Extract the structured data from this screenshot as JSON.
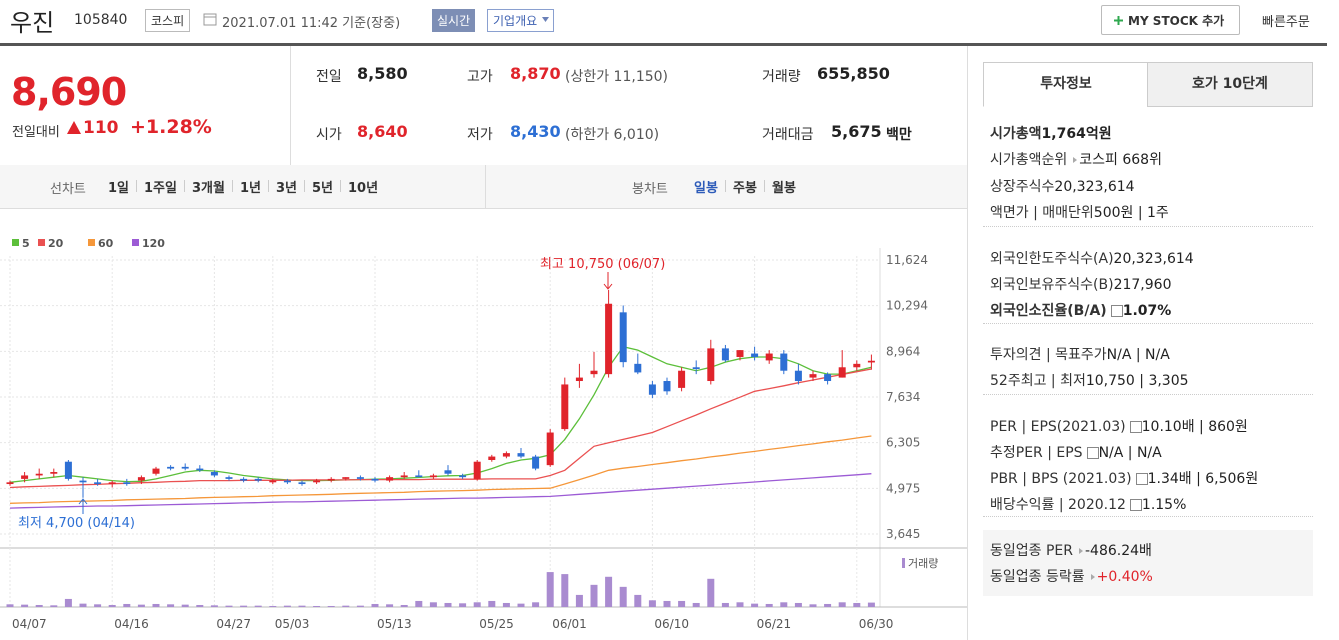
{
  "header": {
    "name": "우진",
    "code": "105840",
    "market": "코스피",
    "timestamp": "2021.07.01 11:42 기준(장중)",
    "realtime": "실시간",
    "overview": "기업개요",
    "mystock": "MY STOCK 추가",
    "quick_order": "빠른주문"
  },
  "quote": {
    "price": "8,690",
    "change_label": "전일대비",
    "change": "110",
    "change_pct": "+1.28%",
    "items": [
      {
        "label": "전일",
        "value": "8,580"
      },
      {
        "label": "고가",
        "value": "8,870",
        "tone": "up",
        "extra": "(상한가 11,150)"
      },
      {
        "label": "거래량",
        "value": "655,850"
      },
      {
        "label": "시가",
        "value": "8,640",
        "tone": "up"
      },
      {
        "label": "저가",
        "value": "8,430",
        "tone": "down",
        "extra": "(하한가 6,010)"
      },
      {
        "label": "거래대금",
        "value": "5,675",
        "extra": "백만"
      }
    ]
  },
  "toolbar": {
    "line_label": "선차트",
    "line_periods": [
      "1일",
      "1주일",
      "3개월",
      "1년",
      "3년",
      "5년",
      "10년"
    ],
    "candle_label": "봉차트",
    "candle_periods": [
      "일봉",
      "주봉",
      "월봉"
    ],
    "active_candle": 0
  },
  "chart": {
    "type": "candlestick",
    "categories": [
      "04/07",
      null,
      null,
      null,
      null,
      null,
      null,
      "04/16",
      null,
      null,
      null,
      null,
      null,
      null,
      "04/27",
      null,
      null,
      null,
      "05/03",
      null,
      null,
      null,
      null,
      null,
      null,
      "05/13",
      null,
      null,
      null,
      null,
      null,
      null,
      "05/25",
      null,
      null,
      null,
      null,
      "06/01",
      null,
      null,
      null,
      null,
      null,
      null,
      "06/10",
      null,
      null,
      null,
      null,
      null,
      null,
      "06/21",
      null,
      null,
      null,
      null,
      null,
      null,
      "06/30",
      null
    ],
    "open": [
      5100,
      5250,
      5350,
      5400,
      5750,
      5200,
      5150,
      5100,
      5150,
      5200,
      5400,
      5600,
      5600,
      5550,
      5450,
      5300,
      5250,
      5250,
      5150,
      5200,
      5150,
      5150,
      5200,
      5250,
      5300,
      5250,
      5200,
      5300,
      5350,
      5300,
      5500,
      5350,
      5250,
      5800,
      5900,
      6000,
      5900,
      5650,
      6700,
      8100,
      8300,
      8300,
      10100,
      8600,
      8000,
      8100,
      7900,
      8500,
      8100,
      9050,
      8800,
      8900,
      8700,
      8900,
      8400,
      8200,
      8300,
      8200,
      8500,
      8640
    ],
    "high": [
      5200,
      5450,
      5550,
      5550,
      5800,
      5300,
      5250,
      5200,
      5250,
      5350,
      5600,
      5650,
      5700,
      5650,
      5500,
      5350,
      5300,
      5300,
      5250,
      5250,
      5200,
      5250,
      5300,
      5300,
      5350,
      5300,
      5350,
      5450,
      5500,
      5400,
      5650,
      5400,
      5800,
      5950,
      6050,
      6150,
      5950,
      6700,
      8200,
      8600,
      8950,
      10750,
      10300,
      8900,
      8100,
      8200,
      8500,
      8700,
      9300,
      9150,
      9000,
      9100,
      9000,
      9000,
      8600,
      8400,
      8350,
      9000,
      8700,
      8870
    ],
    "low": [
      5050,
      5150,
      5250,
      5300,
      5200,
      4700,
      5050,
      5000,
      5050,
      5100,
      5350,
      5500,
      5500,
      5450,
      5300,
      5200,
      5150,
      5150,
      5100,
      5100,
      5050,
      5100,
      5150,
      5200,
      5200,
      5150,
      5150,
      5250,
      5300,
      5250,
      5350,
      5250,
      5200,
      5750,
      5850,
      5850,
      5500,
      5600,
      6650,
      7900,
      8200,
      8200,
      8500,
      8300,
      7600,
      7700,
      7800,
      8300,
      8000,
      8650,
      8700,
      8700,
      8600,
      8300,
      8000,
      8100,
      8000,
      8200,
      8400,
      8430
    ],
    "close": [
      5150,
      5350,
      5400,
      5450,
      5250,
      5150,
      5100,
      5150,
      5100,
      5300,
      5550,
      5550,
      5550,
      5500,
      5350,
      5250,
      5200,
      5200,
      5200,
      5150,
      5100,
      5200,
      5250,
      5300,
      5250,
      5200,
      5300,
      5350,
      5300,
      5350,
      5400,
      5300,
      5750,
      5900,
      6000,
      5900,
      5550,
      6600,
      8000,
      8200,
      8400,
      10350,
      8650,
      8350,
      7700,
      7800,
      8400,
      8450,
      9050,
      8700,
      9000,
      8800,
      8900,
      8400,
      8100,
      8300,
      8100,
      8500,
      8600,
      8690
    ],
    "volume": [
      400000,
      350000,
      300000,
      250000,
      1200000,
      500000,
      400000,
      300000,
      450000,
      350000,
      450000,
      400000,
      350000,
      300000,
      250000,
      200000,
      200000,
      200000,
      150000,
      200000,
      200000,
      150000,
      150000,
      200000,
      200000,
      450000,
      400000,
      300000,
      900000,
      700000,
      600000,
      550000,
      700000,
      900000,
      600000,
      500000,
      700000,
      5200000,
      4900000,
      1800000,
      3300000,
      4500000,
      3000000,
      1800000,
      1000000,
      900000,
      900000,
      600000,
      4200000,
      600000,
      700000,
      500000,
      450000,
      700000,
      600000,
      400000,
      450000,
      700000,
      600000,
      655850
    ],
    "volume_label": "거래량",
    "volume_lim": [
      0,
      7000000
    ],
    "ma": [
      {
        "name": "5",
        "color": "#5cbf3a",
        "values": [
          5150,
          5200,
          5250,
          5300,
          5350,
          5300,
          5250,
          5200,
          5170,
          5180,
          5250,
          5350,
          5450,
          5500,
          5480,
          5420,
          5350,
          5300,
          5250,
          5220,
          5200,
          5200,
          5210,
          5220,
          5230,
          5240,
          5250,
          5270,
          5290,
          5320,
          5340,
          5350,
          5420,
          5550,
          5700,
          5800,
          5850,
          5950,
          6400,
          7000,
          7700,
          8500,
          9100,
          9000,
          8800,
          8600,
          8500,
          8400,
          8500,
          8650,
          8750,
          8800,
          8800,
          8750,
          8600,
          8400,
          8300,
          8300,
          8400,
          8500
        ]
      },
      {
        "name": "20",
        "color": "#ea5151",
        "values": [
          5000,
          5020,
          5030,
          5050,
          5060,
          5080,
          5090,
          5110,
          5120,
          5140,
          5150,
          5170,
          5180,
          5200,
          5200,
          5200,
          5210,
          5210,
          5210,
          5210,
          5220,
          5220,
          5220,
          5220,
          5230,
          5230,
          5230,
          5230,
          5230,
          5240,
          5240,
          5240,
          5240,
          5250,
          5250,
          5250,
          5250,
          5350,
          5500,
          5850,
          6200,
          6300,
          6400,
          6500,
          6600,
          6770,
          6940,
          7110,
          7290,
          7460,
          7630,
          7800,
          7880,
          7960,
          8050,
          8130,
          8210,
          8290,
          8370,
          8450
        ]
      },
      {
        "name": "60",
        "color": "#f5973a",
        "values": [
          4540,
          4550,
          4560,
          4580,
          4590,
          4600,
          4610,
          4620,
          4640,
          4650,
          4660,
          4670,
          4680,
          4700,
          4710,
          4720,
          4730,
          4740,
          4760,
          4770,
          4780,
          4790,
          4800,
          4820,
          4830,
          4840,
          4850,
          4860,
          4880,
          4890,
          4900,
          4910,
          4920,
          4940,
          4950,
          4960,
          4970,
          4980,
          5100,
          5230,
          5360,
          5500,
          5560,
          5610,
          5670,
          5720,
          5780,
          5830,
          5890,
          5940,
          6000,
          6050,
          6110,
          6160,
          6220,
          6270,
          6330,
          6380,
          6440,
          6500
        ]
      },
      {
        "name": "120",
        "color": "#9c5bd5",
        "values": [
          4400,
          4410,
          4420,
          4430,
          4440,
          4450,
          4460,
          4460,
          4470,
          4480,
          4490,
          4500,
          4510,
          4520,
          4530,
          4540,
          4550,
          4560,
          4570,
          4580,
          4580,
          4590,
          4600,
          4610,
          4620,
          4630,
          4640,
          4650,
          4660,
          4670,
          4680,
          4690,
          4690,
          4700,
          4710,
          4720,
          4730,
          4740,
          4770,
          4800,
          4830,
          4860,
          4890,
          4920,
          4950,
          4980,
          5010,
          5040,
          5070,
          5100,
          5130,
          5160,
          5190,
          5220,
          5250,
          5280,
          5310,
          5340,
          5370,
          5400
        ]
      }
    ],
    "ylim": [
      3645,
      11624
    ],
    "yticks": [
      {
        "value": 11624,
        "label": "11,624"
      },
      {
        "value": 10294,
        "label": "10,294"
      },
      {
        "value": 8964,
        "label": "8,964"
      },
      {
        "value": 7634,
        "label": "7,634"
      },
      {
        "value": 6305,
        "label": "6,305"
      },
      {
        "value": 4975,
        "label": "4,975"
      },
      {
        "value": 3645,
        "label": "3,645"
      }
    ],
    "grid": true,
    "up_color": "#e0242b",
    "down_color": "#2d6fd4",
    "annotations": [
      {
        "text": "최고 10,750 (06/07)",
        "tone": "up"
      },
      {
        "text": "최저 4,700 (04/14)",
        "tone": "down"
      }
    ]
  },
  "panel": {
    "tabs": [
      "투자정보",
      "호가 10단계"
    ],
    "active_tab": 0,
    "sections": [
      [
        {
          "label": "시가총액",
          "value": "1,764억원",
          "strong": true
        },
        {
          "label": "시가총액순위",
          "value": "코스피 668위",
          "more": true
        },
        {
          "label": "상장주식수",
          "value": "20,323,614"
        },
        {
          "label": "액면가 | 매매단위",
          "value": "500원 | 1주"
        }
      ],
      [
        {
          "label": "외국인한도주식수(A)",
          "value": "20,323,614"
        },
        {
          "label": "외국인보유주식수(B)",
          "value": "217,960"
        },
        {
          "label": "외국인소진율(B/A)",
          "value": "1.07%",
          "strong": true,
          "help": true
        }
      ],
      [
        {
          "label": "투자의견 | 목표주가",
          "value": "N/A | N/A"
        },
        {
          "label": "52주최고 | 최저",
          "value": "10,750 | 3,305"
        }
      ],
      [
        {
          "label": "PER | EPS(2021.03)",
          "value": "10.10배 | 860원",
          "help": true
        },
        {
          "label": "추정PER | EPS",
          "value": "N/A | N/A",
          "help": true
        },
        {
          "label": "PBR | BPS (2021.03)",
          "value": "1.34배 | 6,506원",
          "help": true
        },
        {
          "label": "배당수익률 | 2020.12",
          "value": "1.15%",
          "help": true
        }
      ]
    ],
    "peer": [
      {
        "label": "동일업종 PER",
        "value": "-486.24배",
        "more": true
      },
      {
        "label": "동일업종 등락률",
        "value": "+0.40%",
        "more": true,
        "tone": "up"
      }
    ]
  }
}
